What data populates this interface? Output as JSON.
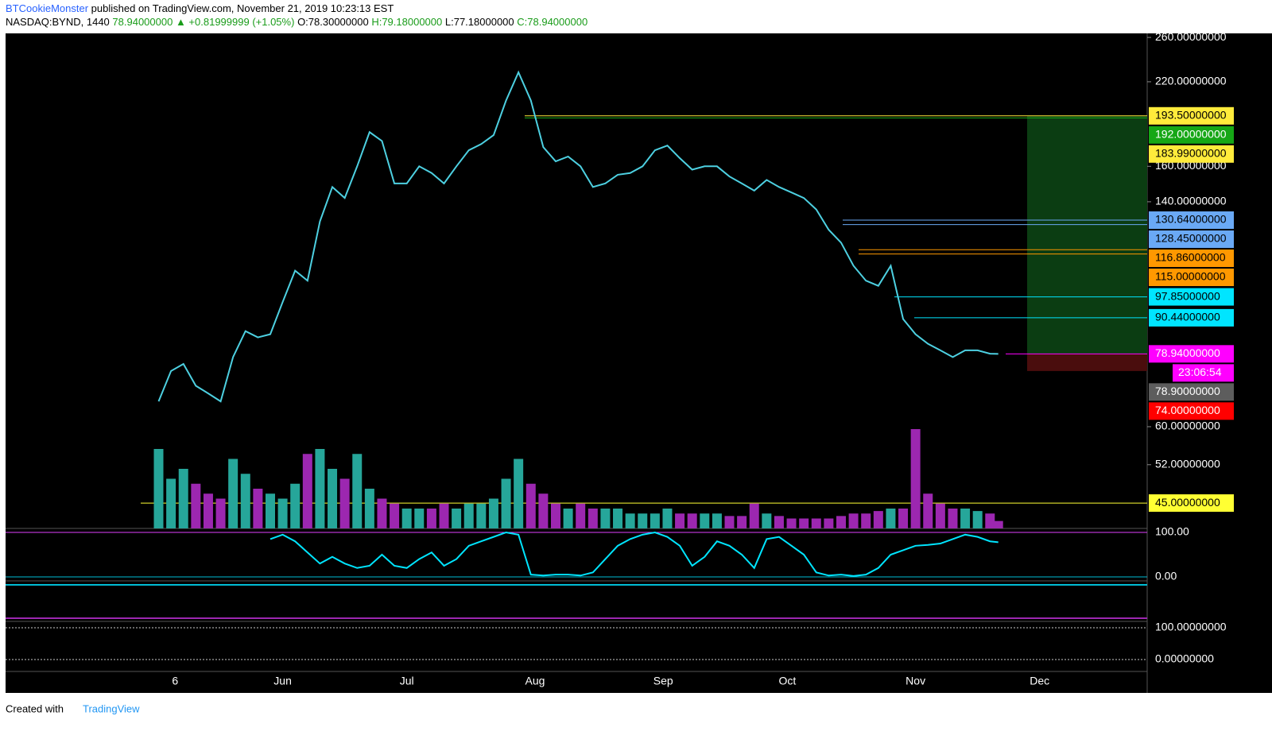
{
  "header": {
    "author": "BTCookieMonster",
    "published": "published on TradingView.com, November 21, 2019 10:23:13 EST",
    "symbol": "NASDAQ:BYND, 1440",
    "last": "78.94000000",
    "change": "▲ +0.81999999 (+1.05%)",
    "open": "O:78.30000000",
    "high": "H:79.18000000",
    "low": "L:77.18000000",
    "close": "C:78.94000000"
  },
  "footer": {
    "created": "Created with",
    "brand": "TradingView"
  },
  "chart_data": {
    "type": "line",
    "log_scale": true,
    "color": "#4dd0e1",
    "up_color": "#26a69a",
    "down_color": "#9c27b0",
    "x": [
      0,
      3,
      6,
      9,
      12,
      15,
      18,
      21,
      24,
      27,
      30,
      33,
      36,
      39,
      42,
      45,
      48,
      51,
      54,
      57,
      60,
      63,
      66,
      69,
      72,
      75,
      78,
      81,
      84,
      87,
      90,
      93,
      96,
      99,
      102,
      105,
      108,
      111,
      114,
      117,
      120,
      123,
      126,
      129,
      132,
      135,
      138,
      141,
      144,
      147,
      150,
      153,
      156,
      159,
      162,
      165,
      168,
      171,
      174,
      177,
      180,
      183,
      186,
      189,
      192,
      195,
      198,
      201,
      203
    ],
    "values": [
      66,
      74,
      76,
      70,
      68,
      66,
      78,
      86,
      84,
      85,
      96,
      108,
      104,
      130,
      148,
      142,
      160,
      182,
      176,
      150,
      150,
      160,
      156,
      150,
      160,
      170,
      174,
      180,
      205,
      228,
      205,
      172,
      163,
      166,
      160,
      148,
      150,
      155,
      156,
      160,
      170,
      173,
      165,
      158,
      160,
      160,
      154,
      150,
      146,
      152,
      148,
      145,
      142,
      136,
      126,
      120,
      110,
      104,
      102,
      110,
      90,
      85,
      82,
      80,
      78,
      80,
      80,
      79,
      78.94
    ],
    "volume": [
      16,
      10,
      12,
      9,
      7,
      6,
      14,
      11,
      8,
      7,
      6,
      9,
      15,
      16,
      12,
      10,
      15,
      8,
      6,
      5,
      4,
      4,
      4,
      5,
      4,
      5,
      5,
      6,
      10,
      14,
      9,
      7,
      5,
      4,
      5,
      4,
      4,
      4,
      3,
      3,
      3,
      4,
      3,
      3,
      3,
      3,
      2.5,
      2.5,
      5,
      3,
      2.5,
      2,
      2,
      2,
      2,
      2.5,
      3,
      3,
      3.5,
      4,
      4,
      20,
      7,
      5,
      4,
      4,
      3.5,
      3,
      1.5
    ],
    "stoch": [
      null,
      null,
      null,
      null,
      null,
      null,
      null,
      null,
      null,
      85,
      95,
      80,
      55,
      30,
      45,
      30,
      20,
      25,
      50,
      25,
      20,
      40,
      55,
      25,
      40,
      70,
      80,
      90,
      100,
      95,
      5,
      3,
      5,
      5,
      3,
      10,
      40,
      70,
      85,
      95,
      100,
      90,
      70,
      25,
      45,
      80,
      70,
      50,
      20,
      85,
      90,
      70,
      50,
      10,
      3,
      5,
      2,
      5,
      20,
      50,
      60,
      70,
      72,
      75,
      85,
      95,
      90,
      80,
      78
    ],
    "stoch_color": "#00e5ff",
    "xlim": [
      -37,
      239
    ],
    "xticks": [
      {
        "value": 4,
        "label": "6"
      },
      {
        "value": 30,
        "label": "Jun"
      },
      {
        "value": 60,
        "label": "Jul"
      },
      {
        "value": 91,
        "label": "Aug"
      },
      {
        "value": 122,
        "label": "Sep"
      },
      {
        "value": 152,
        "label": "Oct"
      },
      {
        "value": 183,
        "label": "Nov"
      },
      {
        "value": 213,
        "label": "Dec"
      }
    ],
    "ylim": [
      40.9,
      264
    ],
    "yticks": [
      {
        "value": 260,
        "label": "260.00000000"
      },
      {
        "value": 220,
        "label": "220.00000000"
      },
      {
        "value": 160,
        "label": "160.00000000"
      },
      {
        "value": 140,
        "label": "140.00000000"
      },
      {
        "value": 60,
        "label": "60.00000000"
      },
      {
        "value": 52,
        "label": "52.00000000"
      }
    ],
    "stoch_ylim": [
      -9,
      109
    ],
    "stoch_yticks": [
      {
        "value": 100,
        "label": "100.00"
      },
      {
        "value": 0,
        "label": "0.00"
      }
    ],
    "osc_ylim": [
      -37.5,
      120
    ],
    "osc_yticks": [
      {
        "value": 100,
        "label": "100.00000000"
      },
      {
        "value": 0,
        "label": "0.00000000"
      }
    ],
    "levels": [
      {
        "value": 193.5,
        "label": "193.50000000",
        "color": "#ffeb3b",
        "text_color": "#000"
      },
      {
        "value": 192,
        "label": "192.00000000",
        "color": "#16a716",
        "text_color": "#fff"
      },
      {
        "value": 183.99,
        "label": "183.99000000",
        "color": "#ffeb3b",
        "text_color": "#000"
      },
      {
        "value": 130.64,
        "label": "130.64000000",
        "color": "#6aa9f5",
        "text_color": "#000"
      },
      {
        "value": 128.45,
        "label": "128.45000000",
        "color": "#6aa9f5",
        "text_color": "#000"
      },
      {
        "value": 116.86,
        "label": "116.86000000",
        "color": "#ff9800",
        "text_color": "#000"
      },
      {
        "value": 115,
        "label": "115.00000000",
        "color": "#ff9800",
        "text_color": "#000"
      },
      {
        "value": 97.85,
        "label": "97.85000000",
        "color": "#00e5ff",
        "text_color": "#000"
      },
      {
        "value": 90.44,
        "label": "90.44000000",
        "color": "#00e5ff",
        "text_color": "#000"
      },
      {
        "value": 78.94,
        "label": "78.94000000",
        "color": "#ff00ff",
        "text_color": "#fff"
      },
      {
        "value": 78.9,
        "label": "78.90000000",
        "color": "#5d5d5d",
        "text_color": "#fff"
      },
      {
        "value": 74,
        "label": "74.00000000",
        "color": "#ff0000",
        "text_color": "#fff"
      },
      {
        "value": 45,
        "label": "45.00000000",
        "color": "#ffff33",
        "text_color": "#000"
      }
    ],
    "countdown": "23:06:54",
    "countdown_color": "#ff00ff"
  }
}
